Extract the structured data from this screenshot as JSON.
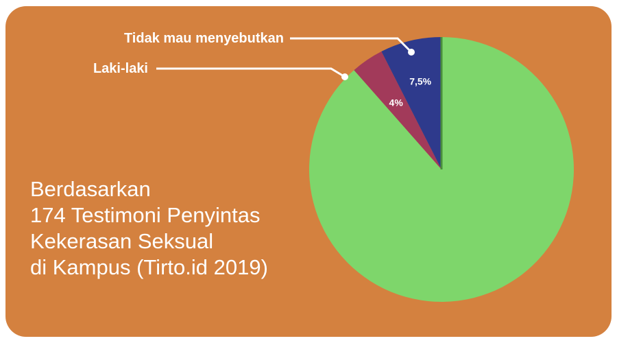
{
  "colors": {
    "background": "#D4813F",
    "female_slice": "#7ED66B",
    "male_slice": "#A23A5A",
    "undisclosed_slice": "#2E3A8C",
    "text": "#FFFFFF"
  },
  "headline": [
    "Berdasarkan",
    "174 Testimoni Penyintas",
    "Kekerasan Seksual",
    "di Kampus (Tirto.id 2019)"
  ],
  "chart_data": {
    "type": "pie",
    "title": "",
    "slices": [
      {
        "key": "female",
        "label": "",
        "value": 88.5,
        "value_label": "",
        "color": "#7ED66B"
      },
      {
        "key": "male",
        "label": "Laki-laki",
        "value": 4,
        "value_label": "4%",
        "color": "#A23A5A"
      },
      {
        "key": "undisclosed",
        "label": "Tidak mau menyebutkan",
        "value": 7.5,
        "value_label": "7,5%",
        "color": "#2E3A8C"
      }
    ],
    "start": "top",
    "direction": "clockwise",
    "legend": "callout-top-left"
  }
}
